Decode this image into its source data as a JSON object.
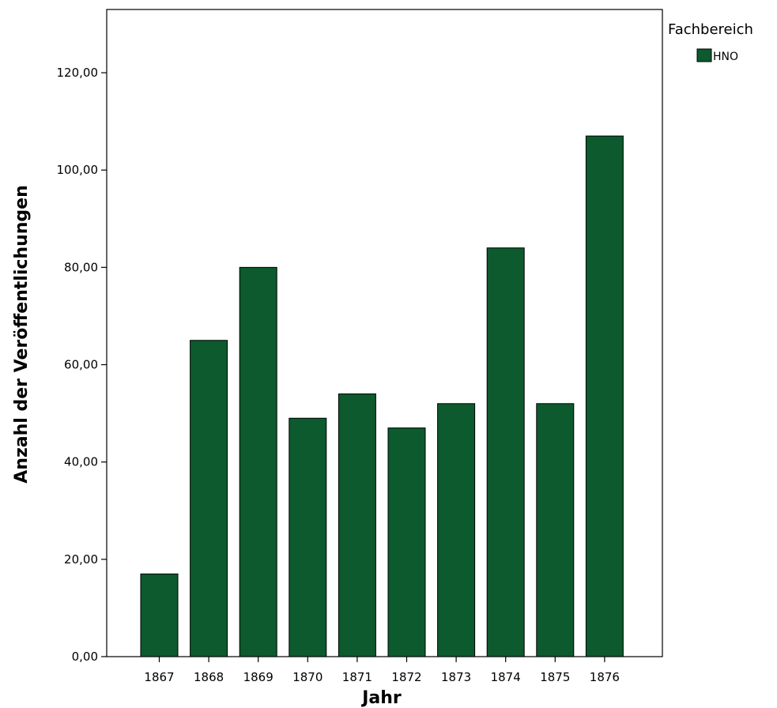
{
  "chart_data": {
    "type": "bar",
    "categories": [
      "1867",
      "1868",
      "1869",
      "1870",
      "1871",
      "1872",
      "1873",
      "1874",
      "1875",
      "1876"
    ],
    "series": [
      {
        "name": "HNO",
        "values": [
          17,
          65,
          80,
          49,
          54,
          47,
          52,
          84,
          52,
          107
        ]
      }
    ],
    "xlabel": "Jahr",
    "ylabel": "Anzahl der Veröffentlichungen",
    "ylim": [
      0,
      133
    ],
    "yticks": [
      0,
      20,
      40,
      60,
      80,
      100,
      120
    ],
    "ytick_labels": [
      "0,00",
      "20,00",
      "40,00",
      "60,00",
      "80,00",
      "100,00",
      "120,00"
    ],
    "grid": false,
    "legend": {
      "title": "Fachbereich",
      "placement": "top-right outside",
      "entries": [
        "HNO"
      ]
    },
    "colors": {
      "bar": "#0c5a2e",
      "bar_edge": "#000000"
    }
  }
}
